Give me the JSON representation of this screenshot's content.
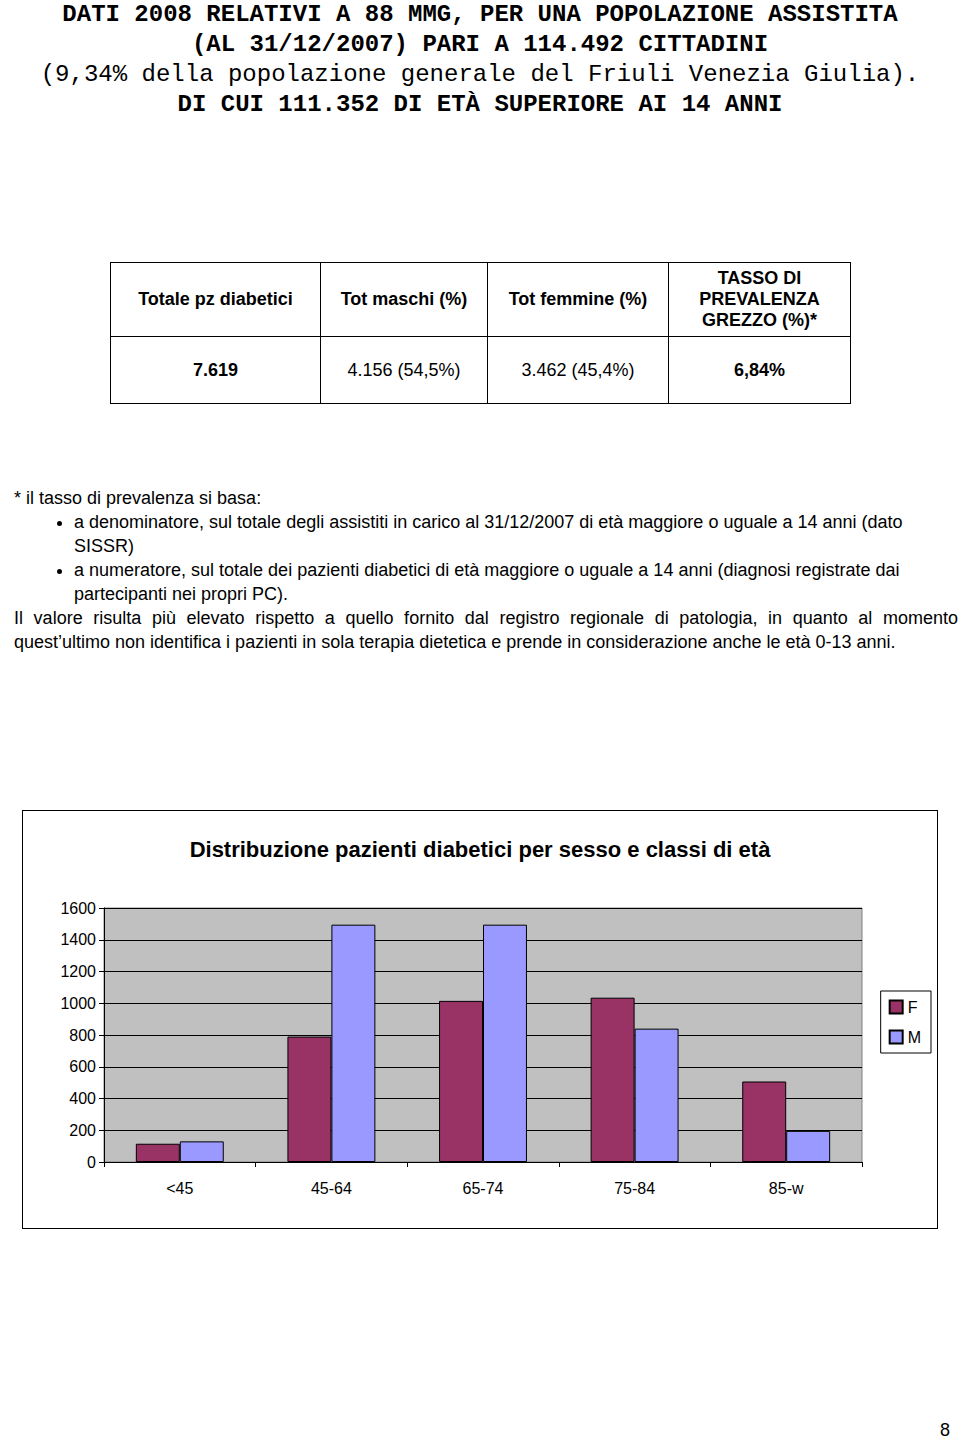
{
  "header": {
    "lines": [
      "DATI 2008 RELATIVI A 88 MMG, PER UNA POPOLAZIONE ASSISTITA",
      "(AL 31/12/2007) PARI A 114.492 CITTADINI",
      "(9,34% della popolazione generale del Friuli Venezia Giulia).",
      "DI CUI 111.352 DI ETÀ SUPERIORE AI 14 ANNI"
    ]
  },
  "table": {
    "header": [
      "Totale pz diabetici",
      "Tot maschi (%)",
      "Tot femmine (%)",
      "TASSO DI PREVALENZA GREZZO (%)*"
    ],
    "rows": [
      [
        "7.619",
        "4.156 (54,5%)",
        "3.462 (45,4%)",
        "6,84%"
      ]
    ]
  },
  "notes": {
    "intro": "* il tasso di prevalenza si basa:",
    "bullets": [
      "a denominatore, sul totale degli assistiti in carico al 31/12/2007 di età maggiore o uguale a 14 anni (dato SISSR)",
      "a numeratore, sul totale dei pazienti diabetici di età maggiore o uguale a 14 anni (diagnosi registrate dai partecipanti nei propri PC)."
    ],
    "paragraph": "Il valore risulta più elevato rispetto a quello fornito dal registro regionale di patologia, in quanto al momento quest’ultimo non identifica i pazienti in sola terapia dietetica e prende in considerazione anche le età 0-13 anni."
  },
  "chart_data": {
    "type": "bar",
    "title": "Distribuzione pazienti diabetici per sesso e classi di età",
    "categories": [
      "<45",
      "45-64",
      "65-74",
      "75-84",
      "85-w"
    ],
    "series": [
      {
        "name": "F",
        "color": "#993366",
        "values": [
          115,
          790,
          1015,
          1035,
          507
        ]
      },
      {
        "name": "M",
        "color": "#9999ff",
        "values": [
          130,
          1495,
          1495,
          840,
          196
        ]
      }
    ],
    "ylim": [
      0,
      1600
    ],
    "yticks": [
      0,
      200,
      400,
      600,
      800,
      1000,
      1200,
      1400,
      1600
    ],
    "grid": true,
    "legend": "right"
  },
  "page_number": "8"
}
